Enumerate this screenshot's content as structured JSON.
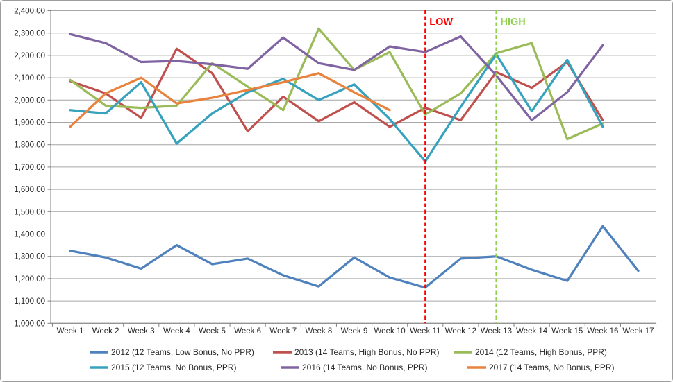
{
  "chart_data": {
    "type": "line",
    "title": "",
    "categories": [
      "Week 1",
      "Week 2",
      "Week 3",
      "Week 4",
      "Week 5",
      "Week 6",
      "Week 7",
      "Week 8",
      "Week 9",
      "Week 10",
      "Week 11",
      "Week 12",
      "Week 13",
      "Week 14",
      "Week 15",
      "Week 16",
      "Week 17"
    ],
    "ylim": [
      1000,
      2400
    ],
    "ytick_step": 100,
    "ytick_labels": [
      "1,000.00",
      "1,100.00",
      "1,200.00",
      "1,300.00",
      "1,400.00",
      "1,500.00",
      "1,600.00",
      "1,700.00",
      "1,800.00",
      "1,900.00",
      "2,000.00",
      "2,100.00",
      "2,200.00",
      "2,300.00",
      "2,400.00"
    ],
    "grid": true,
    "legend_position": "bottom",
    "series": [
      {
        "name": "2012 (12 Teams, Low Bonus, No PPR)",
        "color": "#4F81BD",
        "values": [
          1325,
          1295,
          1245,
          1350,
          1265,
          1290,
          1215,
          1165,
          1295,
          1205,
          1160,
          1290,
          1300,
          1240,
          1190,
          1435,
          1235
        ]
      },
      {
        "name": "2013 (14 Teams, High Bonus, No PPR)",
        "color": "#C0504D",
        "values": [
          2085,
          2030,
          1920,
          2230,
          2120,
          1860,
          2015,
          1905,
          1990,
          1880,
          1965,
          1910,
          2125,
          2055,
          2170,
          1910,
          null
        ]
      },
      {
        "name": "2014 (12 Teams, High Bonus, PPR)",
        "color": "#9BBB59",
        "values": [
          2090,
          1975,
          1965,
          1975,
          2165,
          2060,
          1955,
          2320,
          2135,
          2215,
          1935,
          2030,
          2210,
          2255,
          1825,
          1895,
          null
        ]
      },
      {
        "name": "2015 (12 Teams, No Bonus, PPR)",
        "color": "#36A2BD",
        "values": [
          1955,
          1940,
          2080,
          1805,
          1940,
          2035,
          2095,
          2000,
          2070,
          1915,
          1725,
          1970,
          2205,
          1950,
          2180,
          1880,
          null
        ]
      },
      {
        "name": "2016 (14 Teams, No Bonus, PPR)",
        "color": "#8064A2",
        "values": [
          2295,
          2255,
          2170,
          2175,
          2160,
          2140,
          2280,
          2165,
          2135,
          2240,
          2215,
          2285,
          2110,
          1910,
          2035,
          2245,
          null
        ]
      },
      {
        "name": "2017 (14 Teams, No Bonus, PPR)",
        "color": "#E8823C",
        "values": [
          1880,
          2030,
          2100,
          1985,
          2010,
          2045,
          2080,
          2120,
          2035,
          1955,
          null,
          null,
          null,
          null,
          null,
          null,
          null
        ]
      }
    ],
    "annotations": [
      {
        "label": "LOW",
        "category": "Week 11",
        "color": "#FF0000",
        "style": "dashed-vertical"
      },
      {
        "label": "HIGH",
        "category": "Week 13",
        "color": "#92D050",
        "style": "dashed-vertical"
      }
    ]
  },
  "legend": {
    "rows": [
      {
        "items": [
          0,
          1,
          2
        ]
      },
      {
        "items": [
          3,
          4,
          5
        ]
      }
    ]
  }
}
